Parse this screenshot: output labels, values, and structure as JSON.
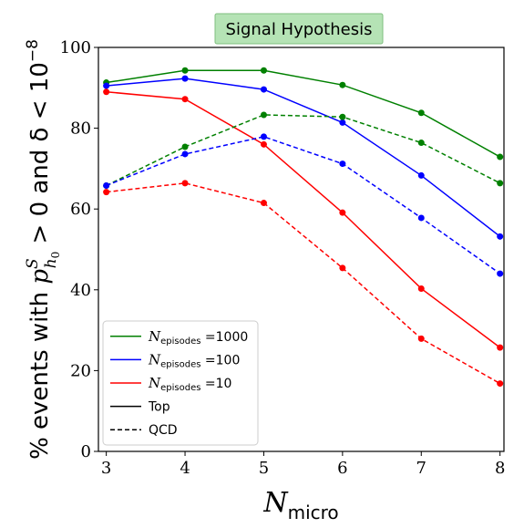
{
  "chart_data": {
    "type": "line",
    "title": "Signal Hypothesis",
    "xlabel": {
      "main": "N",
      "sub": "micro"
    },
    "ylabel": {
      "prefix": "% events with ",
      "p": "p",
      "sup": "S",
      "sub": "h",
      "subsub": "0",
      "rest": " > 0 and δ < 10",
      "exp": "−8"
    },
    "x": [
      3,
      4,
      5,
      6,
      7,
      8
    ],
    "xlim": [
      2.9,
      8.05
    ],
    "ylim": [
      0,
      100
    ],
    "xticks": [
      "3",
      "4",
      "5",
      "6",
      "7",
      "8"
    ],
    "yticks": [
      "0",
      "20",
      "40",
      "60",
      "80",
      "100"
    ],
    "grid": false,
    "legend_position": "lower-left",
    "series": [
      {
        "name": "N_episodes=1000 Top",
        "episodes": "1000",
        "sample": "Top",
        "color": "#008000",
        "style": "solid",
        "values": [
          91.3,
          94.3,
          94.3,
          90.7,
          83.8,
          72.9
        ]
      },
      {
        "name": "N_episodes=100 Top",
        "episodes": "100",
        "sample": "Top",
        "color": "#0000ff",
        "style": "solid",
        "values": [
          90.5,
          92.3,
          89.6,
          81.4,
          68.3,
          53.2
        ]
      },
      {
        "name": "N_episodes=10 Top",
        "episodes": "10",
        "sample": "Top",
        "color": "#ff0000",
        "style": "solid",
        "values": [
          89.0,
          87.2,
          76.0,
          59.1,
          40.3,
          25.7
        ]
      },
      {
        "name": "N_episodes=1000 QCD",
        "episodes": "1000",
        "sample": "QCD",
        "color": "#008000",
        "style": "dashed",
        "values": [
          65.8,
          75.4,
          83.3,
          82.8,
          76.4,
          66.4
        ]
      },
      {
        "name": "N_episodes=100 QCD",
        "episodes": "100",
        "sample": "QCD",
        "color": "#0000ff",
        "style": "dashed",
        "values": [
          65.8,
          73.6,
          77.9,
          71.2,
          57.8,
          44.0
        ]
      },
      {
        "name": "N_episodes=10 QCD",
        "episodes": "10",
        "sample": "QCD",
        "color": "#ff0000",
        "style": "dashed",
        "values": [
          64.2,
          66.4,
          61.5,
          45.4,
          27.9,
          16.8
        ]
      }
    ],
    "legend": [
      {
        "kind": "color",
        "color": "#008000",
        "prefix": "N",
        "sub": "episodes",
        "suffix": " =1000"
      },
      {
        "kind": "color",
        "color": "#0000ff",
        "prefix": "N",
        "sub": "episodes",
        "suffix": " =100"
      },
      {
        "kind": "color",
        "color": "#ff0000",
        "prefix": "N",
        "sub": "episodes",
        "suffix": " =10"
      },
      {
        "kind": "style",
        "style": "solid",
        "label": "Top"
      },
      {
        "kind": "style",
        "style": "dashed",
        "label": "QCD"
      }
    ],
    "title_box_color": "#b5e3b5"
  }
}
